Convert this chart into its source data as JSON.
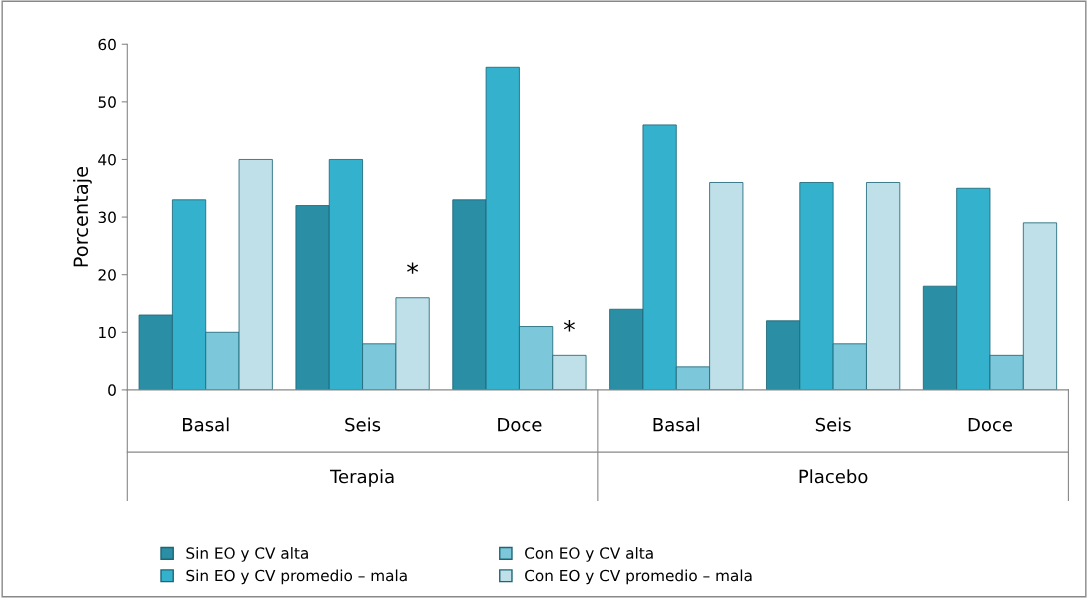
{
  "chart_data": {
    "type": "bar",
    "ylabel": "Porcentaje",
    "categories": [
      "Basal",
      "Seis",
      "Doce",
      "Basal",
      "Seis",
      "Doce"
    ],
    "series": [
      {
        "name": "Sin EO y CV alta",
        "color": "#2a8ea5",
        "values": [
          13,
          32,
          33,
          14,
          12,
          18
        ]
      },
      {
        "name": "Sin EO y CV promedio – mala",
        "color": "#34b2cd",
        "values": [
          33,
          40,
          56,
          46,
          36,
          35
        ]
      },
      {
        "name": "Con EO y CV alta",
        "color": "#7cc8da",
        "values": [
          10,
          8,
          11,
          4,
          8,
          6
        ]
      },
      {
        "name": "Con EO y CV promedio – mala",
        "color": "#bfe0e8",
        "values": [
          40,
          16,
          6,
          36,
          36,
          29
        ]
      }
    ],
    "ylim": [
      0,
      60
    ],
    "yticks": [
      0,
      10,
      20,
      30,
      40,
      50,
      60
    ],
    "grid": false,
    "legend": "bottom",
    "annotations": [
      "Terapia",
      "Placebo",
      "*",
      "*"
    ]
  }
}
